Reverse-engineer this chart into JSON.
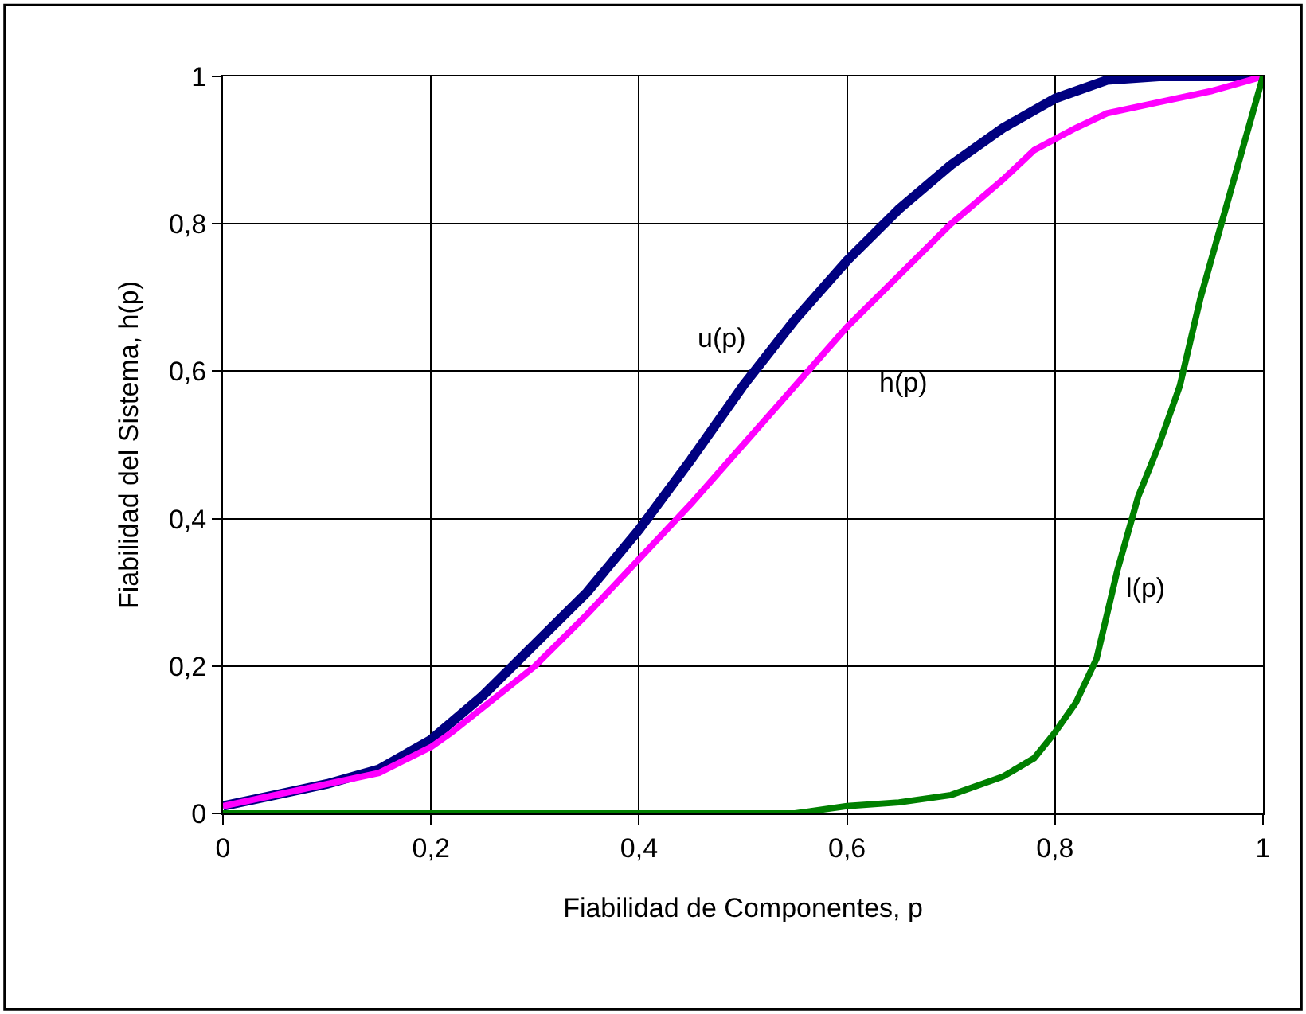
{
  "chart_data": {
    "type": "line",
    "xlabel": "Fiabilidad de Componentes, p",
    "ylabel": "Fiabilidad del Sistema, h(p)",
    "xlim": [
      0,
      1
    ],
    "ylim": [
      0,
      1
    ],
    "xticks": [
      0,
      {
        "value": 0.2,
        "label": "0,2"
      },
      {
        "value": 0.4,
        "label": "0,4"
      },
      {
        "value": 0.6,
        "label": "0,6"
      },
      {
        "value": 0.8,
        "label": "0,8"
      },
      1
    ],
    "yticks": [
      0,
      {
        "value": 0.2,
        "label": "0,2"
      },
      {
        "value": 0.4,
        "label": "0,4"
      },
      {
        "value": 0.6,
        "label": "0,6"
      },
      {
        "value": 0.8,
        "label": "0,8"
      },
      1
    ],
    "grid": true,
    "legend": false,
    "marker": "none",
    "line_style": "solid",
    "series": [
      {
        "name": "u(p)",
        "color": "#000080",
        "x": [
          0,
          0.05,
          0.1,
          0.15,
          0.2,
          0.25,
          0.3,
          0.35,
          0.4,
          0.45,
          0.5,
          0.55,
          0.6,
          0.65,
          0.7,
          0.75,
          0.8,
          0.85,
          0.9,
          1
        ],
        "values": [
          0.01,
          0.025,
          0.04,
          0.06,
          0.1,
          0.16,
          0.23,
          0.3,
          0.385,
          0.48,
          0.58,
          0.67,
          0.75,
          0.82,
          0.88,
          0.93,
          0.97,
          0.995,
          1,
          1
        ]
      },
      {
        "name": "h(p)",
        "color": "#ff00ff",
        "x": [
          0,
          0.15,
          0.2,
          0.22,
          0.3,
          0.35,
          0.4,
          0.45,
          0.5,
          0.55,
          0.6,
          0.65,
          0.7,
          0.75,
          0.78,
          0.82,
          0.85,
          0.9,
          0.95,
          1
        ],
        "values": [
          0.01,
          0.055,
          0.09,
          0.11,
          0.2,
          0.27,
          0.345,
          0.42,
          0.5,
          0.58,
          0.66,
          0.73,
          0.8,
          0.86,
          0.9,
          0.93,
          0.95,
          0.965,
          0.98,
          1
        ]
      },
      {
        "name": "l(p)",
        "color": "#008000",
        "x": [
          0,
          0.45,
          0.55,
          0.6,
          0.65,
          0.7,
          0.75,
          0.78,
          0.8,
          0.82,
          0.84,
          0.86,
          0.88,
          0.9,
          0.92,
          0.94,
          0.96,
          0.98,
          1
        ],
        "values": [
          0,
          0,
          0,
          0.01,
          0.015,
          0.025,
          0.05,
          0.075,
          0.11,
          0.15,
          0.21,
          0.33,
          0.43,
          0.5,
          0.58,
          0.7,
          0.8,
          0.9,
          1
        ]
      }
    ]
  }
}
